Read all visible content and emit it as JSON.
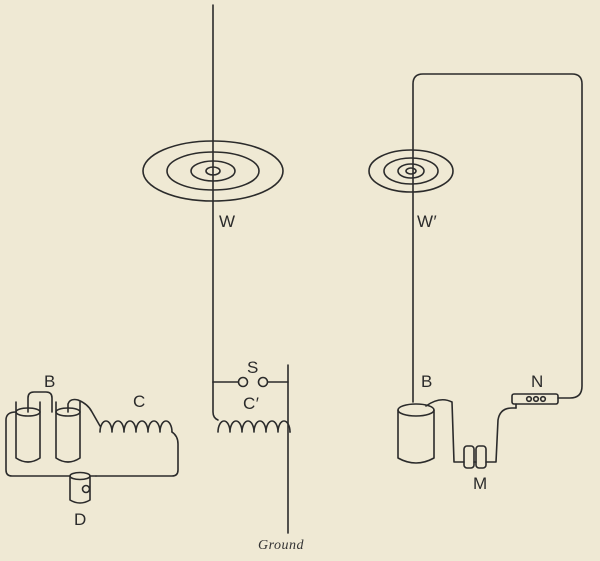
{
  "labels": {
    "w": "W",
    "w_prime": "W′",
    "b_left": "B",
    "c": "C",
    "c_prime": "C′",
    "s": "S",
    "d": "D",
    "b_right": "B",
    "n": "N",
    "m": "M",
    "ground": "Ground"
  },
  "colors": {
    "background": "#efe9d4",
    "ink": "#2b2b2b"
  }
}
